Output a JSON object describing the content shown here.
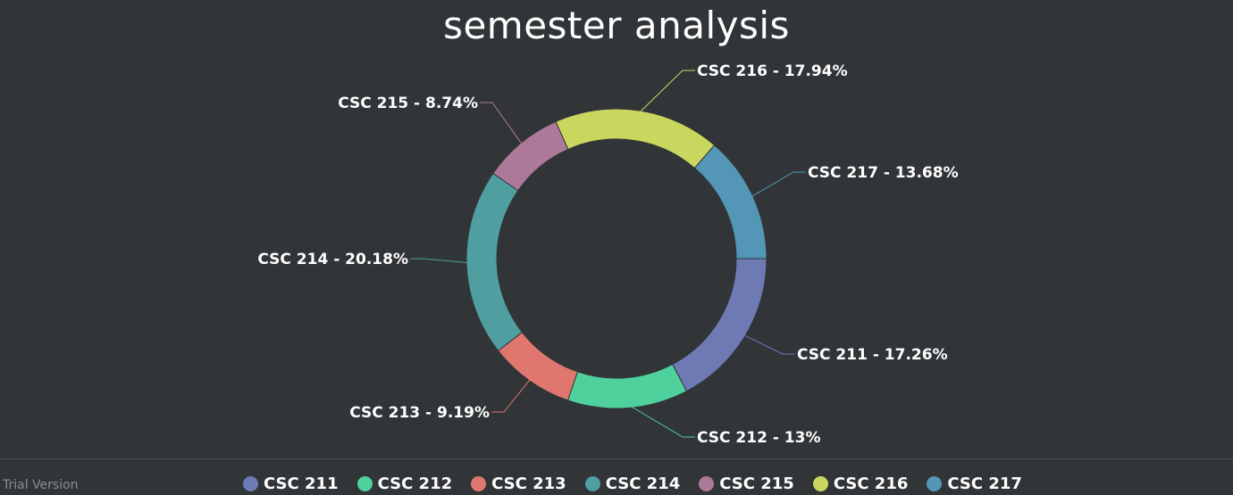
{
  "chart_data": {
    "type": "pie",
    "variant": "donut",
    "title": "semester analysis",
    "slices": [
      {
        "name": "CSC 211",
        "value": 17.26,
        "label": "CSC 211 - 17.26%",
        "color": "#6e7ab4"
      },
      {
        "name": "CSC 212",
        "value": 13,
        "label": "CSC 212 - 13%",
        "color": "#4fd19d"
      },
      {
        "name": "CSC 213",
        "value": 9.19,
        "label": "CSC 213 - 9.19%",
        "color": "#e0776f"
      },
      {
        "name": "CSC 214",
        "value": 20.18,
        "label": "CSC 214 - 20.18%",
        "color": "#4f9ea0"
      },
      {
        "name": "CSC 215",
        "value": 8.74,
        "label": "CSC 215 - 8.74%",
        "color": "#ad7998"
      },
      {
        "name": "CSC 216",
        "value": 17.94,
        "label": "CSC 216 - 17.94%",
        "color": "#c9d75e"
      },
      {
        "name": "CSC 217",
        "value": 13.68,
        "label": "CSC 217 - 13.68%",
        "color": "#5396b5"
      }
    ],
    "legend_position": "bottom"
  },
  "footer": {
    "trial_text": "Trial Version"
  }
}
